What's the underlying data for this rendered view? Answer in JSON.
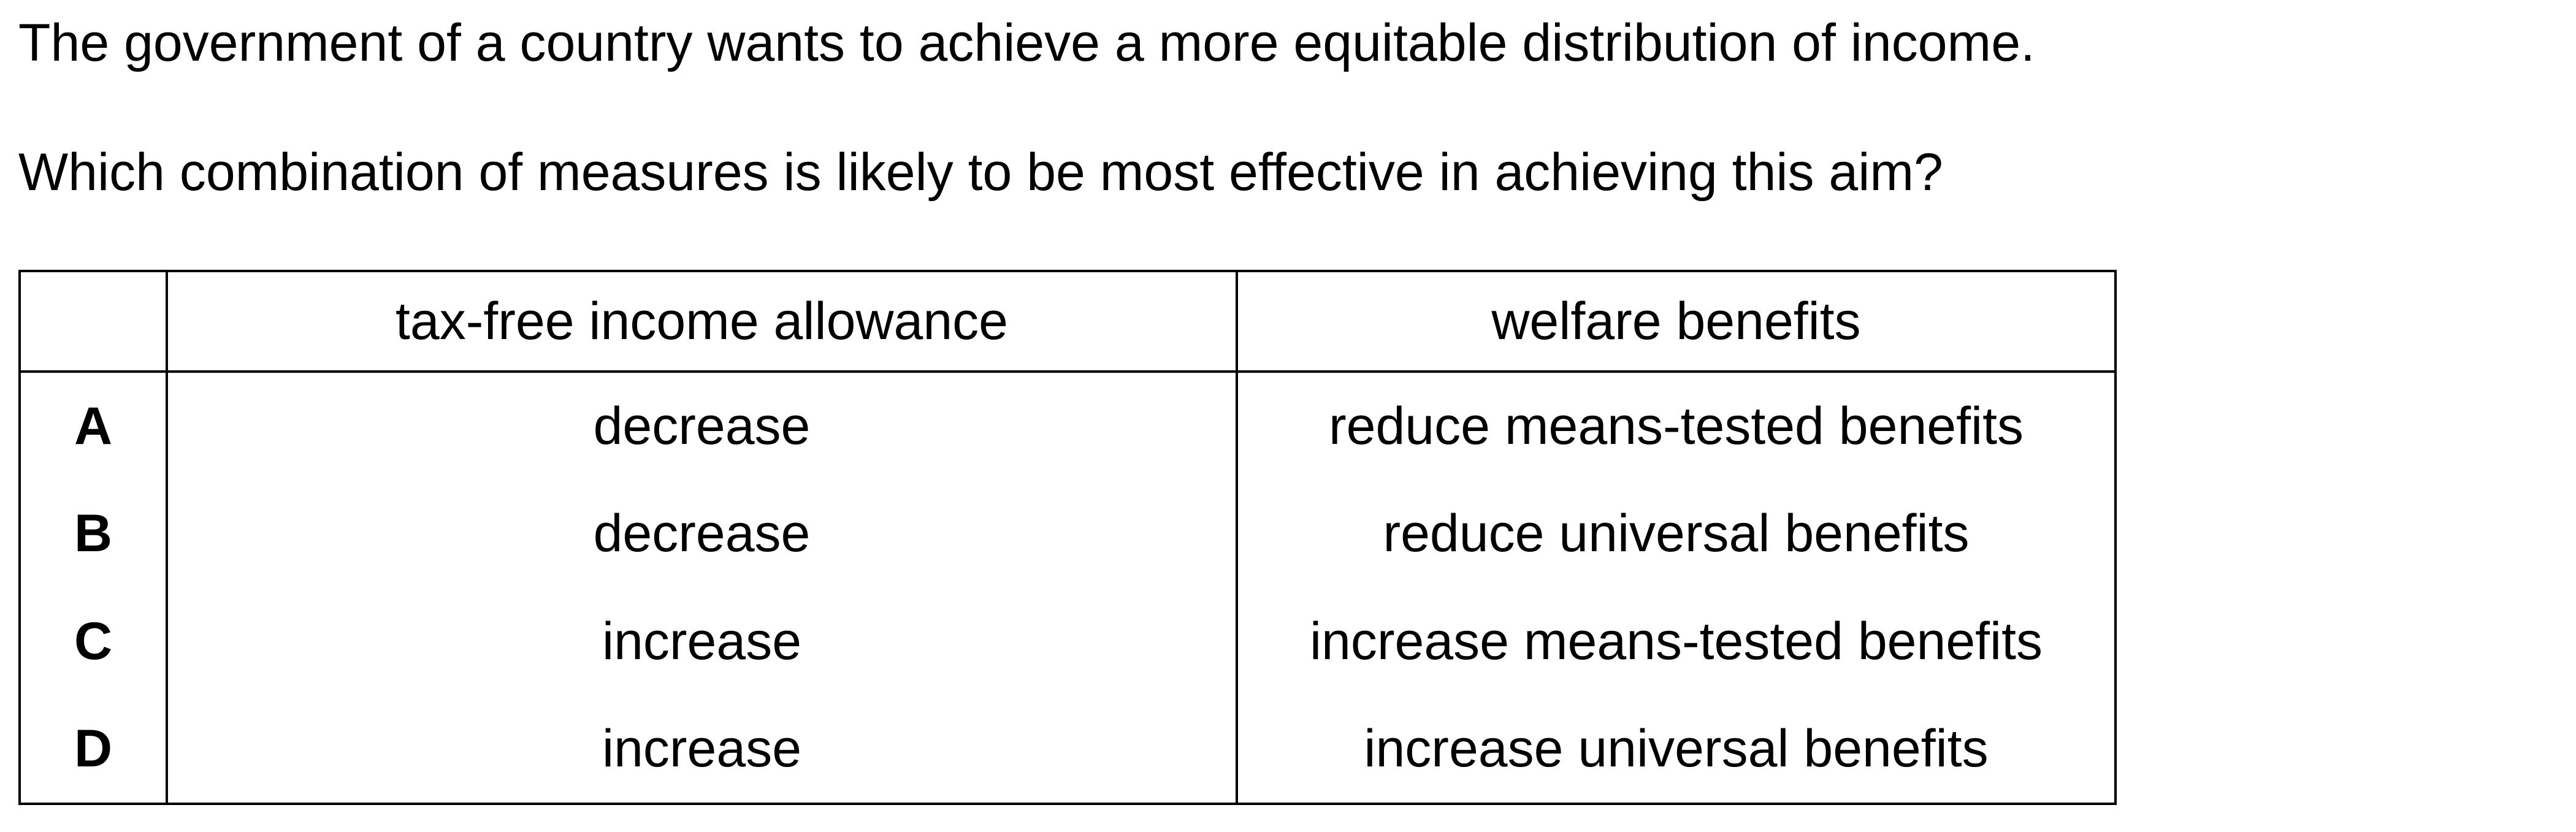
{
  "question": {
    "stem": "The government of a country wants to achieve a more equitable distribution of income.",
    "prompt": "Which combination of measures is likely to be most effective in achieving this aim?"
  },
  "table": {
    "headers": {
      "blank": "",
      "col1": "tax-free income allowance",
      "col2": "welfare benefits"
    },
    "rows": [
      {
        "letter": "A",
        "allowance": "decrease",
        "benefits": "reduce means-tested benefits"
      },
      {
        "letter": "B",
        "allowance": "decrease",
        "benefits": "reduce universal benefits"
      },
      {
        "letter": "C",
        "allowance": "increase",
        "benefits": "increase means-tested benefits"
      },
      {
        "letter": "D",
        "allowance": "increase",
        "benefits": "increase universal benefits"
      }
    ]
  }
}
